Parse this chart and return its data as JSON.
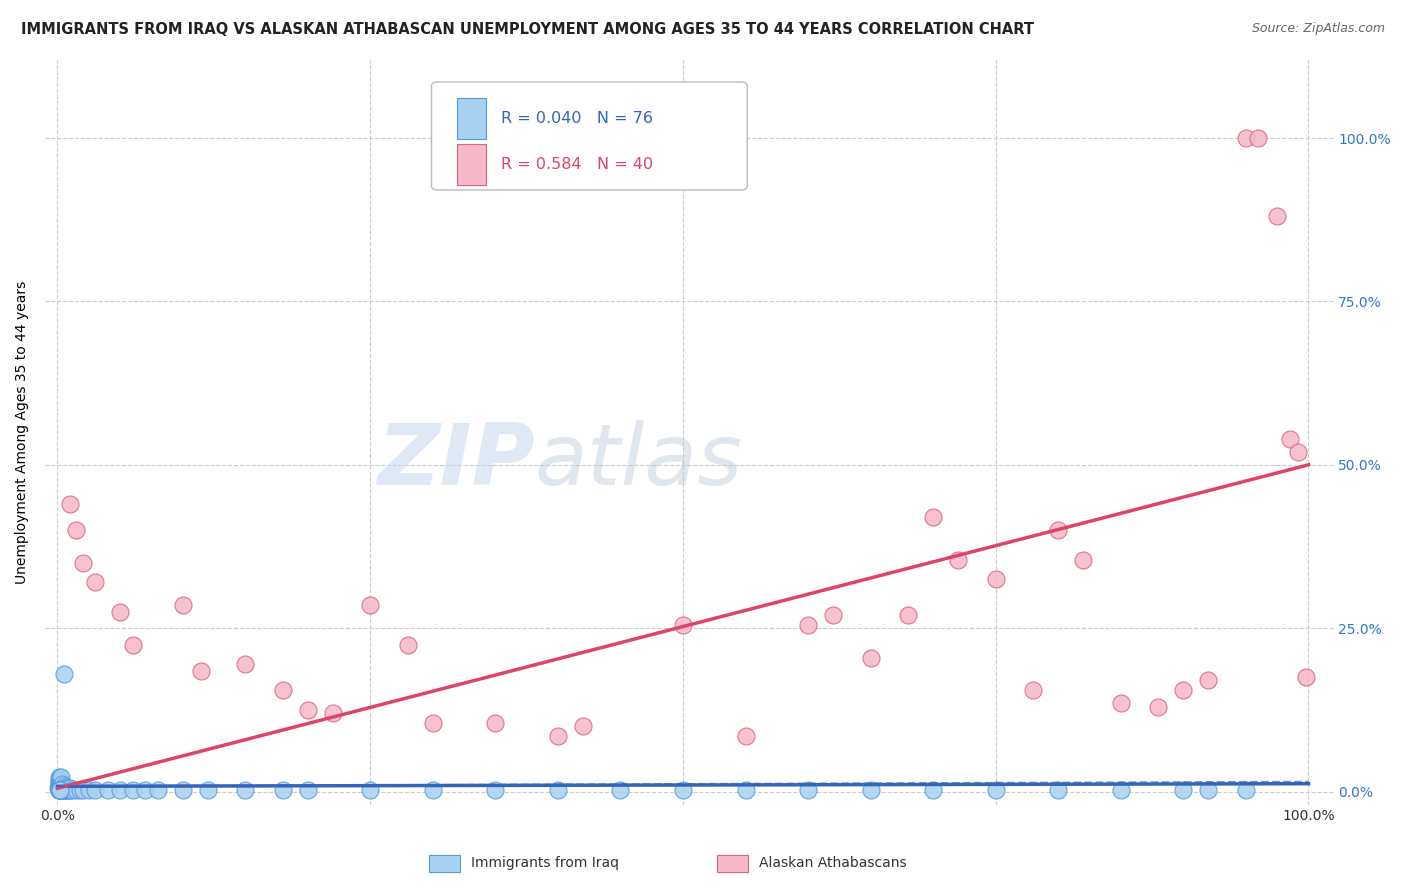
{
  "title": "IMMIGRANTS FROM IRAQ VS ALASKAN ATHABASCAN UNEMPLOYMENT AMONG AGES 35 TO 44 YEARS CORRELATION CHART",
  "source": "Source: ZipAtlas.com",
  "ylabel": "Unemployment Among Ages 35 to 44 years",
  "yticks": [
    0.0,
    0.25,
    0.5,
    0.75,
    1.0
  ],
  "xticks": [
    0.0,
    1.0
  ],
  "xlim": [
    -0.01,
    1.02
  ],
  "ylim": [
    -0.02,
    1.12
  ],
  "legend_labels": [
    "Immigrants from Iraq",
    "Alaskan Athabascans"
  ],
  "legend_r": [
    "0.040",
    "0.584"
  ],
  "legend_n": [
    "76",
    "40"
  ],
  "blue_color": "#A8D0F0",
  "pink_color": "#F5B8C8",
  "blue_edge_color": "#5599DD",
  "pink_edge_color": "#E06080",
  "blue_line_color": "#3366BB",
  "pink_line_color": "#DD4466",
  "blue_scatter": [
    [
      0.0005,
      0.005
    ],
    [
      0.001,
      0.003
    ],
    [
      0.001,
      0.008
    ],
    [
      0.001,
      0.012
    ],
    [
      0.001,
      0.015
    ],
    [
      0.001,
      0.018
    ],
    [
      0.001,
      0.022
    ],
    [
      0.002,
      0.003
    ],
    [
      0.002,
      0.005
    ],
    [
      0.002,
      0.008
    ],
    [
      0.002,
      0.01
    ],
    [
      0.002,
      0.012
    ],
    [
      0.002,
      0.015
    ],
    [
      0.002,
      0.02
    ],
    [
      0.003,
      0.003
    ],
    [
      0.003,
      0.005
    ],
    [
      0.003,
      0.008
    ],
    [
      0.003,
      0.01
    ],
    [
      0.003,
      0.012
    ],
    [
      0.003,
      0.015
    ],
    [
      0.003,
      0.018
    ],
    [
      0.003,
      0.022
    ],
    [
      0.004,
      0.003
    ],
    [
      0.004,
      0.005
    ],
    [
      0.004,
      0.008
    ],
    [
      0.004,
      0.01
    ],
    [
      0.004,
      0.012
    ],
    [
      0.005,
      0.003
    ],
    [
      0.005,
      0.005
    ],
    [
      0.005,
      0.008
    ],
    [
      0.005,
      0.18
    ],
    [
      0.006,
      0.003
    ],
    [
      0.006,
      0.005
    ],
    [
      0.007,
      0.003
    ],
    [
      0.007,
      0.005
    ],
    [
      0.008,
      0.003
    ],
    [
      0.008,
      0.005
    ],
    [
      0.009,
      0.003
    ],
    [
      0.01,
      0.003
    ],
    [
      0.01,
      0.005
    ],
    [
      0.012,
      0.003
    ],
    [
      0.015,
      0.003
    ],
    [
      0.018,
      0.003
    ],
    [
      0.02,
      0.003
    ],
    [
      0.025,
      0.003
    ],
    [
      0.03,
      0.003
    ],
    [
      0.04,
      0.003
    ],
    [
      0.05,
      0.003
    ],
    [
      0.06,
      0.003
    ],
    [
      0.07,
      0.003
    ],
    [
      0.08,
      0.003
    ],
    [
      0.1,
      0.003
    ],
    [
      0.12,
      0.003
    ],
    [
      0.15,
      0.003
    ],
    [
      0.18,
      0.003
    ],
    [
      0.2,
      0.003
    ],
    [
      0.25,
      0.003
    ],
    [
      0.3,
      0.003
    ],
    [
      0.35,
      0.003
    ],
    [
      0.4,
      0.003
    ],
    [
      0.45,
      0.003
    ],
    [
      0.5,
      0.003
    ],
    [
      0.55,
      0.003
    ],
    [
      0.6,
      0.003
    ],
    [
      0.65,
      0.003
    ],
    [
      0.7,
      0.003
    ],
    [
      0.75,
      0.003
    ],
    [
      0.8,
      0.003
    ],
    [
      0.85,
      0.003
    ],
    [
      0.9,
      0.003
    ],
    [
      0.92,
      0.003
    ],
    [
      0.95,
      0.003
    ],
    [
      0.001,
      0.003
    ],
    [
      0.001,
      0.003
    ],
    [
      0.002,
      0.003
    ],
    [
      0.002,
      0.003
    ]
  ],
  "pink_scatter": [
    [
      0.01,
      0.44
    ],
    [
      0.015,
      0.4
    ],
    [
      0.02,
      0.35
    ],
    [
      0.03,
      0.32
    ],
    [
      0.05,
      0.275
    ],
    [
      0.06,
      0.225
    ],
    [
      0.1,
      0.285
    ],
    [
      0.115,
      0.185
    ],
    [
      0.15,
      0.195
    ],
    [
      0.18,
      0.155
    ],
    [
      0.2,
      0.125
    ],
    [
      0.22,
      0.12
    ],
    [
      0.25,
      0.285
    ],
    [
      0.28,
      0.225
    ],
    [
      0.3,
      0.105
    ],
    [
      0.35,
      0.105
    ],
    [
      0.4,
      0.085
    ],
    [
      0.42,
      0.1
    ],
    [
      0.5,
      0.255
    ],
    [
      0.55,
      0.085
    ],
    [
      0.6,
      0.255
    ],
    [
      0.62,
      0.27
    ],
    [
      0.65,
      0.205
    ],
    [
      0.68,
      0.27
    ],
    [
      0.7,
      0.42
    ],
    [
      0.72,
      0.355
    ],
    [
      0.75,
      0.325
    ],
    [
      0.78,
      0.155
    ],
    [
      0.8,
      0.4
    ],
    [
      0.82,
      0.355
    ],
    [
      0.85,
      0.135
    ],
    [
      0.88,
      0.13
    ],
    [
      0.9,
      0.155
    ],
    [
      0.92,
      0.17
    ],
    [
      0.95,
      1.0
    ],
    [
      0.96,
      1.0
    ],
    [
      0.975,
      0.88
    ],
    [
      0.985,
      0.54
    ],
    [
      0.992,
      0.52
    ],
    [
      0.998,
      0.175
    ]
  ],
  "blue_trendline_x": [
    0.0,
    1.0
  ],
  "blue_trendline_y": [
    0.008,
    0.012
  ],
  "pink_trendline_x": [
    0.0,
    1.0
  ],
  "pink_trendline_y": [
    0.005,
    0.5
  ],
  "watermark_zip": "ZIP",
  "watermark_atlas": "atlas",
  "background_color": "#FFFFFF",
  "grid_color": "#CCCCCC",
  "title_fontsize": 10.5,
  "source_fontsize": 9,
  "axis_label_fontsize": 10,
  "tick_fontsize": 10,
  "right_tick_color": "#3377CC",
  "bottom_tick_color": "#333333"
}
